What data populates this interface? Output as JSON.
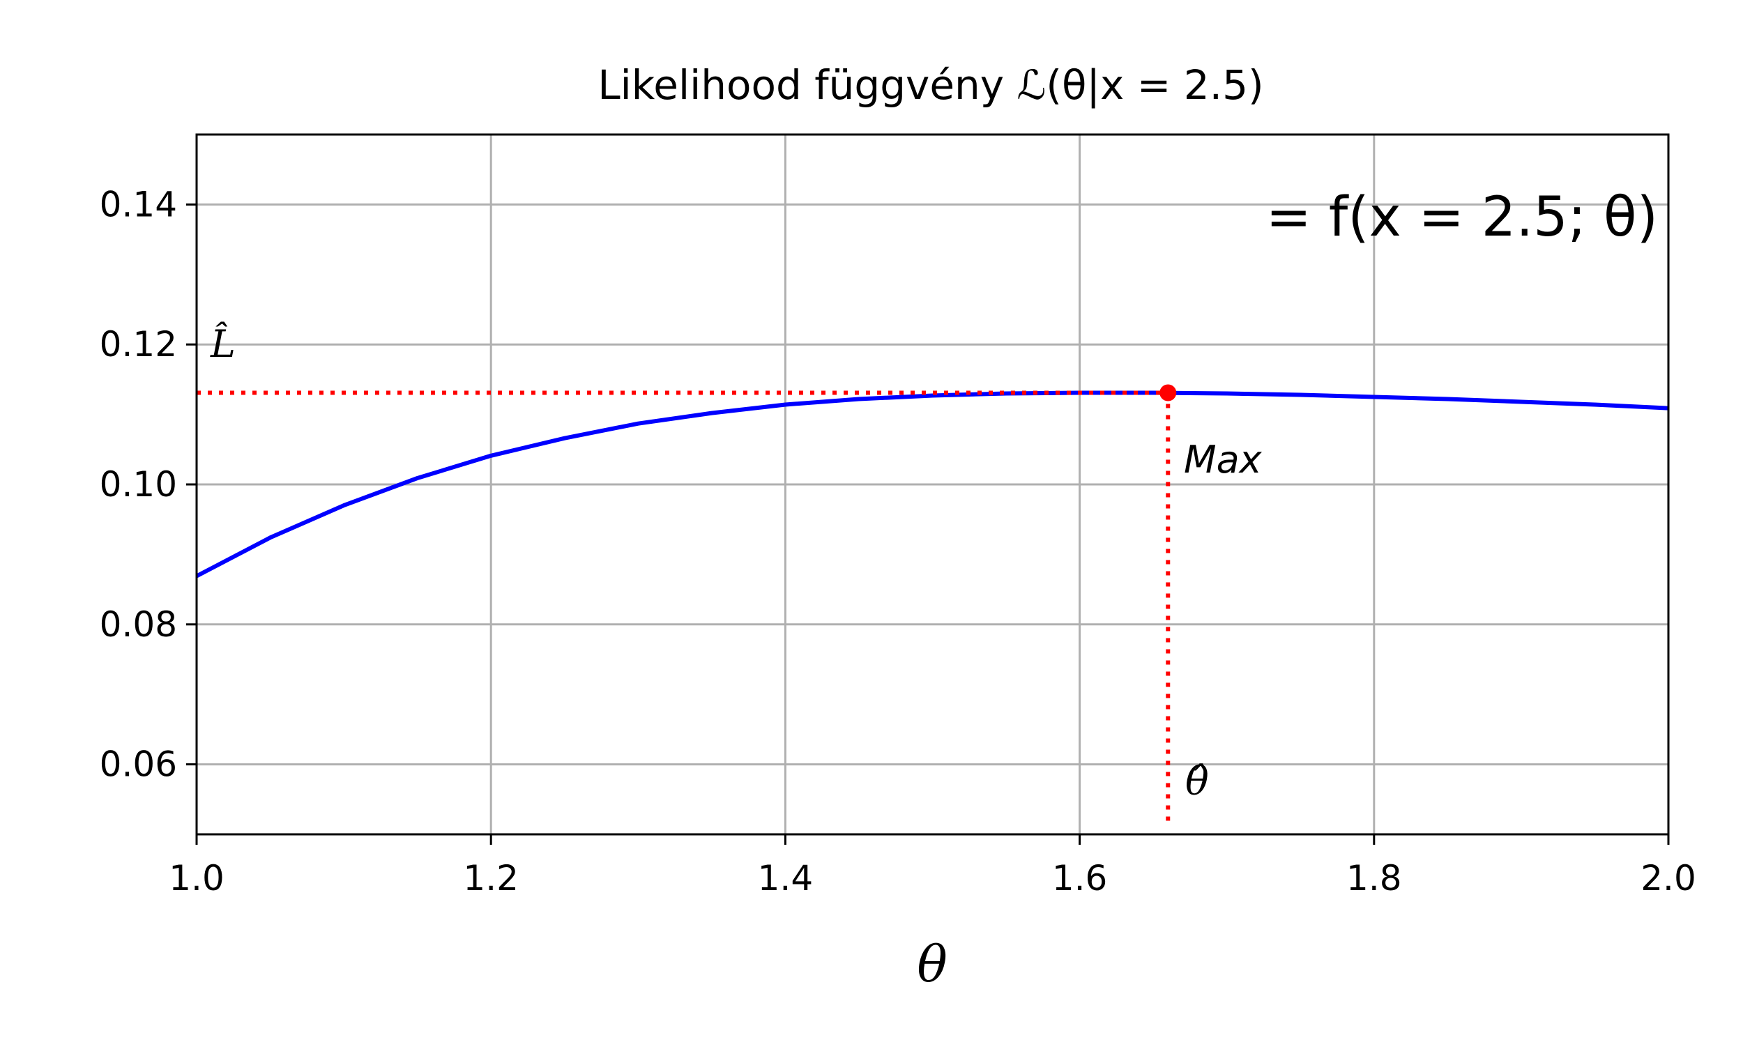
{
  "chart_data": {
    "type": "line",
    "title": "Likelihood függvény ℒ(θ|x = 2.5)",
    "xlabel": "θ",
    "ylabel": "",
    "xlim": [
      1.0,
      2.0
    ],
    "ylim": [
      0.05,
      0.15
    ],
    "grid": true,
    "xticks": [
      1.0,
      1.2,
      1.4,
      1.6,
      1.8,
      2.0
    ],
    "xtick_labels": [
      "1.0",
      "1.2",
      "1.4",
      "1.6",
      "1.8",
      "2.0"
    ],
    "yticks": [
      0.06,
      0.08,
      0.1,
      0.12,
      0.14
    ],
    "ytick_labels": [
      "0.06",
      "0.08",
      "0.10",
      "0.12",
      "0.14"
    ],
    "series": [
      {
        "color": "#0000ff",
        "x": [
          1.0,
          1.05,
          1.1,
          1.15,
          1.2,
          1.25,
          1.3,
          1.35,
          1.4,
          1.45,
          1.5,
          1.55,
          1.6,
          1.65,
          1.7,
          1.75,
          1.8,
          1.85,
          1.9,
          1.95,
          2.0
        ],
        "y": [
          0.0869,
          0.0924,
          0.097,
          0.1009,
          0.1041,
          0.1066,
          0.1087,
          0.1102,
          0.1114,
          0.1122,
          0.1127,
          0.113,
          0.1131,
          0.1131,
          0.113,
          0.1128,
          0.1125,
          0.1122,
          0.1118,
          0.1114,
          0.1109
        ]
      }
    ],
    "max_point": {
      "x": 1.66,
      "y": 0.1131,
      "color": "#ff0000"
    },
    "annotations": {
      "formula": "= f(x = 2.5; θ)",
      "max_label": "Max",
      "l_hat_label": "L̂",
      "theta_hat_label": "θ̂"
    }
  }
}
